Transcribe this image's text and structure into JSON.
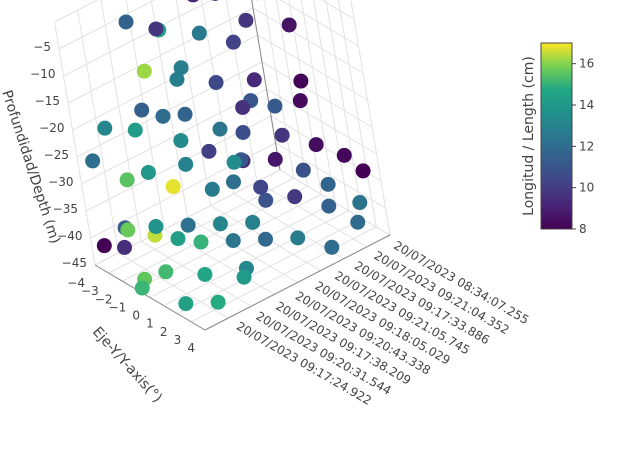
{
  "chart_data": {
    "type": "scatter3d",
    "x_label": "",
    "y_label": "Eje-Y/Y-axis(°)",
    "z_label": "Profundidad/Depth (m)",
    "colorbar_title": "Longitud / Length (cm)",
    "colorscale": "viridis",
    "color_range": [
      8,
      17
    ],
    "colorbar_ticks": [
      8,
      10,
      12,
      14,
      16
    ],
    "x_categories": [
      "20/07/2023 08:34:07.255",
      "20/07/2023 09:21:04.352",
      "20/07/2023 09:17:33.886",
      "20/07/2023 09:21:05.745",
      "20/07/2023 09:18:05.029",
      "20/07/2023 09:20:43.338",
      "20/07/2023 09:17:38.209",
      "20/07/2023 09:20:31.544",
      "20/07/2023 09:17:24.922"
    ],
    "y_ticks": [
      -4,
      -3,
      -2,
      -1,
      0,
      1,
      2,
      3,
      4
    ],
    "z_ticks": [
      -5,
      -10,
      -15,
      -20,
      -25,
      -30,
      -35,
      -40,
      -45
    ],
    "points_note": "[x_index, y, depth, length]",
    "points": [
      [
        0.1,
        -3.5,
        -2,
        8.2
      ],
      [
        0.2,
        -3,
        -3,
        8.5
      ],
      [
        0.25,
        -2.5,
        -1,
        8.4
      ],
      [
        0.3,
        -2,
        -4,
        8.9
      ],
      [
        0.15,
        -1,
        -5,
        9.5
      ],
      [
        0.4,
        -3.8,
        -4,
        12.2
      ],
      [
        0.5,
        -3.8,
        -10,
        14.6
      ],
      [
        0.2,
        -1.5,
        -10,
        9.8
      ],
      [
        0.0,
        -2,
        -8,
        8.3
      ],
      [
        0.05,
        -0.5,
        -12,
        8.6
      ],
      [
        0.35,
        -3,
        -12,
        12.5
      ],
      [
        0.6,
        -3.9,
        -16,
        16.2
      ],
      [
        0.5,
        -2.5,
        -15,
        12.8
      ],
      [
        0.4,
        -1.5,
        -18,
        10.5
      ],
      [
        0.3,
        0,
        -17,
        9.4
      ],
      [
        0.1,
        0.5,
        -20,
        8.1
      ],
      [
        0.15,
        1,
        -22,
        8.3
      ],
      [
        0.25,
        0.5,
        -22,
        11.2
      ],
      [
        0.35,
        -0.5,
        -22,
        9.6
      ],
      [
        0.7,
        -3.8,
        -25,
        14.2
      ],
      [
        0.6,
        -3,
        -23,
        12.0
      ],
      [
        0.55,
        -2,
        -22,
        11.6
      ],
      [
        0.45,
        -1,
        -25,
        12.4
      ],
      [
        0.4,
        0,
        -25,
        10.7
      ],
      [
        0.3,
        1.5,
        -25,
        9.7
      ],
      [
        0.2,
        2.5,
        -27,
        8.4
      ],
      [
        0.1,
        3,
        -30,
        8.2
      ],
      [
        0.05,
        3.5,
        -33,
        8.0
      ],
      [
        0.5,
        0.5,
        -28,
        13.5
      ],
      [
        0.55,
        1,
        -30,
        12.1
      ],
      [
        0.65,
        -1,
        -28,
        13.0
      ],
      [
        0.75,
        -2.5,
        -30,
        14.0
      ],
      [
        0.8,
        -3.5,
        -32,
        15.5
      ],
      [
        0.7,
        -1.5,
        -32,
        16.8
      ],
      [
        0.6,
        0,
        -32,
        12.6
      ],
      [
        0.45,
        1.5,
        -32,
        10.3
      ],
      [
        0.35,
        2.5,
        -34,
        9.9
      ],
      [
        0.25,
        3.5,
        -36,
        11.5
      ],
      [
        0.15,
        4,
        -40,
        11.9
      ],
      [
        0.55,
        2,
        -36,
        12.9
      ],
      [
        0.65,
        1,
        -36,
        13.1
      ],
      [
        0.75,
        0,
        -36,
        12.2
      ],
      [
        0.85,
        -1,
        -36,
        13.8
      ],
      [
        0.9,
        -2.5,
        -38,
        15.7
      ],
      [
        0.95,
        -3.8,
        -42,
        8.0
      ],
      [
        0.85,
        -3.5,
        -40,
        11.3
      ],
      [
        0.9,
        -3,
        -42,
        9.5
      ],
      [
        0.8,
        -2,
        -40,
        16.5
      ],
      [
        0.75,
        -1,
        -40,
        14.3
      ],
      [
        0.7,
        0,
        -40,
        15.0
      ],
      [
        0.6,
        1,
        -40,
        12.4
      ],
      [
        0.5,
        2,
        -40,
        11.8
      ],
      [
        0.4,
        3,
        -40,
        12.7
      ],
      [
        0.3,
        4,
        -42,
        12.0
      ],
      [
        0.65,
        2.5,
        -42,
        13.2
      ],
      [
        0.7,
        3,
        -42,
        14.1
      ],
      [
        0.8,
        1.5,
        -42,
        14.6
      ],
      [
        0.9,
        0,
        -42,
        15.2
      ],
      [
        0.95,
        -1,
        -44,
        15.6
      ],
      [
        1.0,
        -0.5,
        -44,
        15.1
      ],
      [
        0.85,
        3,
        -44,
        14.8
      ],
      [
        0.95,
        2,
        -44,
        14.4
      ],
      [
        0.5,
        -3.5,
        -30,
        13.4
      ],
      [
        0.4,
        -3,
        -33,
        10.1
      ],
      [
        0.3,
        -2,
        -35,
        9.2
      ],
      [
        0.2,
        -1,
        -35,
        8.7
      ],
      [
        0.1,
        -0.5,
        -38,
        10.8
      ],
      [
        0.05,
        0.5,
        -40,
        11.7
      ],
      [
        0.0,
        2,
        -42,
        12.3
      ],
      [
        0.15,
        -3,
        -28,
        11.0
      ],
      [
        0.45,
        -3.8,
        -20,
        12.8
      ],
      [
        0.55,
        -3.2,
        -8,
        9.8
      ],
      [
        0.65,
        -3.9,
        -6,
        11.6
      ],
      [
        0.3,
        -3.8,
        -7,
        9.3
      ],
      [
        0.2,
        -2.8,
        -16,
        10.2
      ],
      [
        0.75,
        -2.2,
        -18,
        11.4
      ],
      [
        0.85,
        -3.8,
        -22,
        13.2
      ],
      [
        0.95,
        -3.6,
        -26,
        12.1
      ],
      [
        0.42,
        -0.2,
        -30,
        11.1
      ],
      [
        0.38,
        0.6,
        -37,
        10.9
      ]
    ]
  }
}
